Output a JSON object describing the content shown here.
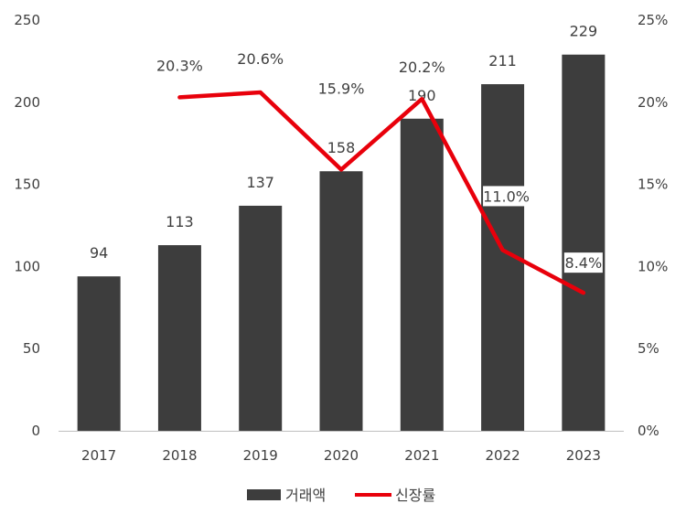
{
  "chart_data": {
    "type": "bar",
    "categories": [
      "2017",
      "2018",
      "2019",
      "2020",
      "2021",
      "2022",
      "2023"
    ],
    "series": [
      {
        "name": "거래액",
        "type": "bar",
        "axis": "left",
        "color": "#3d3d3d",
        "values": [
          94,
          113,
          137,
          158,
          190,
          211,
          229
        ],
        "labels": [
          "94",
          "113",
          "137",
          "158",
          "190",
          "211",
          "229"
        ]
      },
      {
        "name": "신장률",
        "type": "line",
        "axis": "right",
        "color": "#e8000b",
        "values": [
          null,
          20.3,
          20.6,
          15.9,
          20.2,
          11.0,
          8.4
        ],
        "labels": [
          "",
          "20.3%",
          "20.6%",
          "15.9%",
          "20.2%",
          "11.0%",
          "8.4%"
        ]
      }
    ],
    "y_left": {
      "ylim": [
        0,
        250
      ],
      "ticks": [
        "0",
        "50",
        "100",
        "150",
        "200",
        "250"
      ]
    },
    "y_right": {
      "ylim": [
        0,
        25
      ],
      "ticks": [
        "0%",
        "5%",
        "10%",
        "15%",
        "20%",
        "25%"
      ]
    },
    "grid": false,
    "legend": {
      "position": "bottom"
    }
  }
}
